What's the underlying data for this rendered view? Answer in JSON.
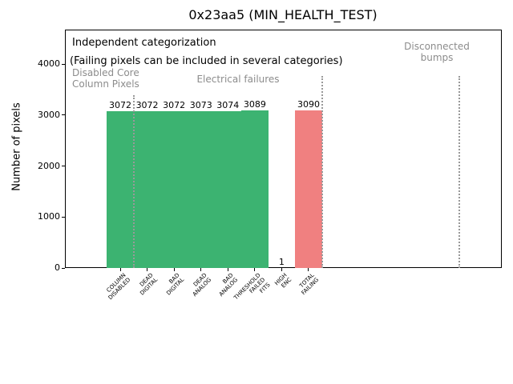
{
  "annotations": {
    "independent": "Independent categorization",
    "note": "(Failing pixels can be included in several categories)",
    "region_disabled": "Disabled Core\nColumn Pixels",
    "region_electrical": "Electrical failures",
    "region_disconnected": "Disconnected\nbumps"
  },
  "chart_data": {
    "type": "bar",
    "title": "0x23aa5 (MIN_HEALTH_TEST)",
    "ylabel": "Number of pixels",
    "xlabel": "",
    "categories": [
      "COLUMN\nDISABLED",
      "DEAD\nDIGITAL",
      "BAD\nDIGITAL",
      "DEAD\nANALOG",
      "BAD\nANALOG",
      "THRESHOLD\nFAILED\nFITS",
      "HIGH\nENC",
      "TOTAL\nFAILING"
    ],
    "values": [
      3072,
      3072,
      3072,
      3073,
      3074,
      3089,
      1,
      3090
    ],
    "bar_colors": [
      "#3cb371",
      "#3cb371",
      "#3cb371",
      "#3cb371",
      "#3cb371",
      "#3cb371",
      "#3cb371",
      "#f08080"
    ],
    "value_labels": [
      3072,
      3072,
      3072,
      3073,
      3074,
      3089,
      1,
      3090
    ],
    "yticks": [
      0,
      1000,
      2000,
      3000,
      4000
    ],
    "ylim": [
      0,
      4675
    ],
    "grid": false,
    "legend": null,
    "region_separators": "dotted vertical lines after COLUMN DISABLED, after TOTAL FAILING, and under Disconnected bumps"
  },
  "colors": {
    "bar_green": "#3cb371",
    "bar_red": "#f08080",
    "gray_text": "#8c8c8c",
    "separator": "#999999",
    "text": "#000000",
    "background": "#ffffff"
  }
}
